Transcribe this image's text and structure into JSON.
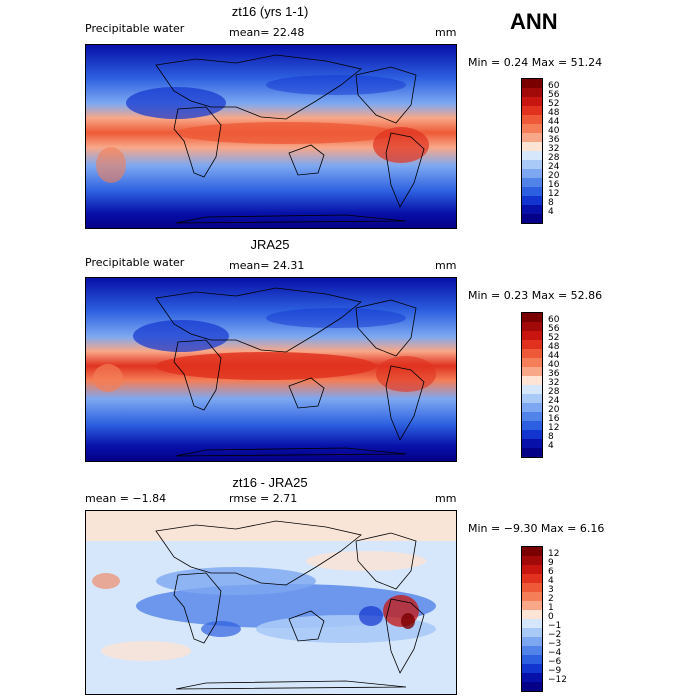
{
  "season": "ANN",
  "units": "mm",
  "colors": {
    "warm_dark": "#67000d",
    "warm": "#e0452b",
    "neutral": "#f7f7f7",
    "cool": "#3b6fe0",
    "cool_dark": "#08008f"
  },
  "panels": [
    {
      "title": "zt16 (yrs 1-1)",
      "left_label": "Precipitable water",
      "stat": "mean=  22.48",
      "units": "mm",
      "minmax": "Min =   0.24 Max =  51.24",
      "colorbar": {
        "levels": [
          "60",
          "56",
          "52",
          "48",
          "44",
          "40",
          "36",
          "32",
          "28",
          "24",
          "20",
          "16",
          "12",
          "8",
          "4"
        ],
        "colors": [
          "#7a0000",
          "#a10a08",
          "#c8150f",
          "#e0321f",
          "#ee5a37",
          "#f47e57",
          "#f8a888",
          "#fde4d4",
          "#d7e7fb",
          "#a9c9f7",
          "#7da8f1",
          "#5283e9",
          "#2d60e0",
          "#1235cf",
          "#0710a8",
          "#050088"
        ]
      }
    },
    {
      "title": "JRA25",
      "left_label": "Precipitable water",
      "stat": "mean=  24.31",
      "units": "mm",
      "minmax": "Min =   0.23 Max =  52.86",
      "colorbar": {
        "levels": [
          "60",
          "56",
          "52",
          "48",
          "44",
          "40",
          "36",
          "32",
          "28",
          "24",
          "20",
          "16",
          "12",
          "8",
          "4"
        ],
        "colors": [
          "#7a0000",
          "#a10a08",
          "#c8150f",
          "#e0321f",
          "#ee5a37",
          "#f47e57",
          "#f8a888",
          "#fde4d4",
          "#d7e7fb",
          "#a9c9f7",
          "#7da8f1",
          "#5283e9",
          "#2d60e0",
          "#1235cf",
          "#0710a8",
          "#050088"
        ]
      }
    },
    {
      "title": "zt16 - JRA25",
      "left_label": "mean =  −1.84",
      "stat": "rmse =   2.71",
      "units": "mm",
      "minmax": "Min =  −9.30 Max =   6.16",
      "colorbar": {
        "levels": [
          "12",
          "9",
          "6",
          "4",
          "3",
          "2",
          "1",
          "0",
          "−1",
          "−2",
          "−3",
          "−4",
          "−6",
          "−9",
          "−12"
        ],
        "colors": [
          "#7a0000",
          "#a10a08",
          "#c8150f",
          "#e0321f",
          "#ee5a37",
          "#f47e57",
          "#f8a888",
          "#fde4d4",
          "#d7e7fb",
          "#a9c9f7",
          "#7da8f1",
          "#5283e9",
          "#2d60e0",
          "#1235cf",
          "#0710a8",
          "#050088"
        ]
      }
    }
  ]
}
